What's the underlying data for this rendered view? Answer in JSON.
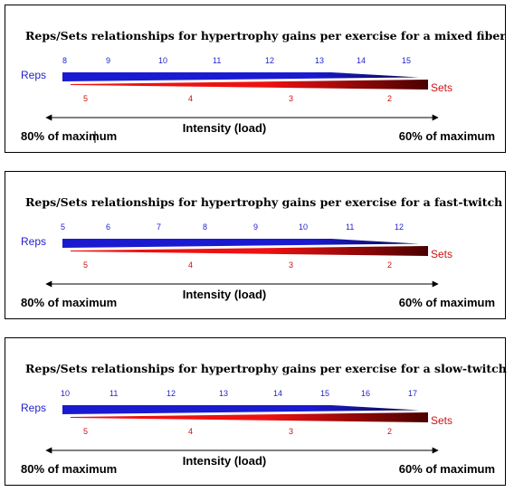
{
  "panels": [
    {
      "title": "Reps/Sets relationships for hypertrophy gains per exercise for a mixed fiber type",
      "reps_label": "Reps",
      "sets_label": "Sets",
      "reps_ticks": [
        "8",
        "9",
        "10",
        "11",
        "12",
        "13",
        "14",
        "15"
      ],
      "sets_ticks": [
        "5",
        "4",
        "3",
        "2"
      ],
      "intensity_label": "Intensity (load)",
      "left_label": "80% of maximum",
      "right_label": "60% of maximum"
    },
    {
      "title": "Reps/Sets relationships for hypertrophy gains per exercise for a fast-twitch dominant",
      "reps_label": "Reps",
      "sets_label": "Sets",
      "reps_ticks": [
        "5",
        "6",
        "7",
        "8",
        "9",
        "10",
        "11",
        "12"
      ],
      "sets_ticks": [
        "5",
        "4",
        "3",
        "2"
      ],
      "intensity_label": "Intensity (load)",
      "left_label": "80% of maximum",
      "right_label": "60% of maximum"
    },
    {
      "title": "Reps/Sets relationships for hypertrophy gains per exercise for a slow-twitch dominant",
      "reps_label": "Reps",
      "sets_label": "Sets",
      "reps_ticks": [
        "10",
        "11",
        "12",
        "13",
        "14",
        "15",
        "16",
        "17"
      ],
      "sets_ticks": [
        "5",
        "4",
        "3",
        "2"
      ],
      "intensity_label": "Intensity (load)",
      "left_label": "80% of maximum",
      "right_label": "60% of maximum"
    }
  ],
  "colors": {
    "reps_bar": "#1a1ad0",
    "reps_bar_dark": "#0a0a4a",
    "sets_bar": "#ee1111",
    "sets_bar_dark": "#4a0000",
    "reps_text": "#1f1fc8",
    "sets_text": "#cc1111"
  }
}
